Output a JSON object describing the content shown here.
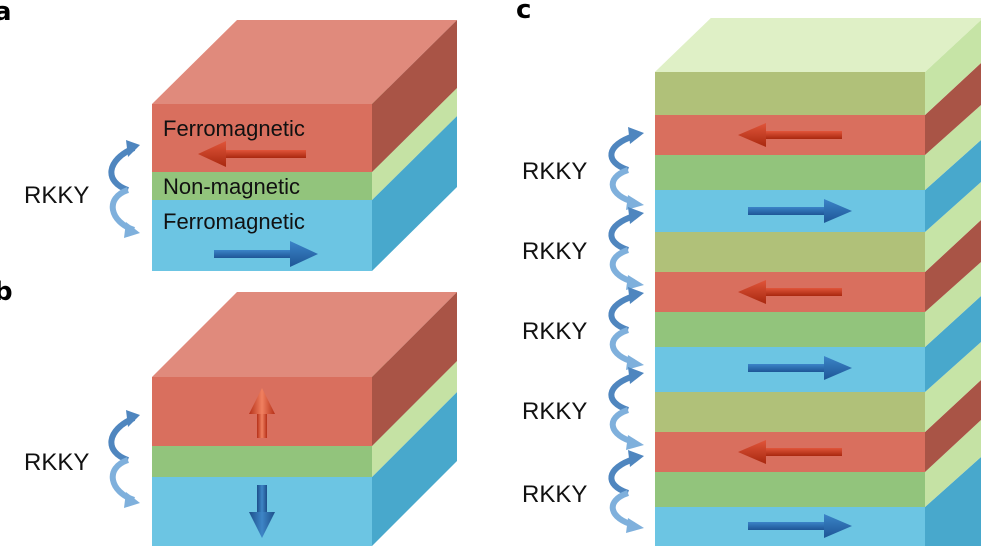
{
  "panels": {
    "a": {
      "label": "a",
      "rkky_label": "RKKY",
      "layers": {
        "top": "Ferromagnetic",
        "middle": "Non-magnetic",
        "bottom": "Ferromagnetic"
      }
    },
    "b": {
      "label": "b",
      "rkky_label": "RKKY"
    },
    "c": {
      "label": "c",
      "rkky_labels": [
        "RKKY",
        "RKKY",
        "RKKY",
        "RKKY",
        "RKKY"
      ]
    }
  },
  "colors": {
    "ferro_red": "#d96f5e",
    "non_magnetic_green": "#92c47c",
    "ferro_blue": "#6cc5e3",
    "arrow_red": "#c0341e",
    "arrow_blue": "#2b6db0",
    "curve_blue": "#4f86bf"
  }
}
